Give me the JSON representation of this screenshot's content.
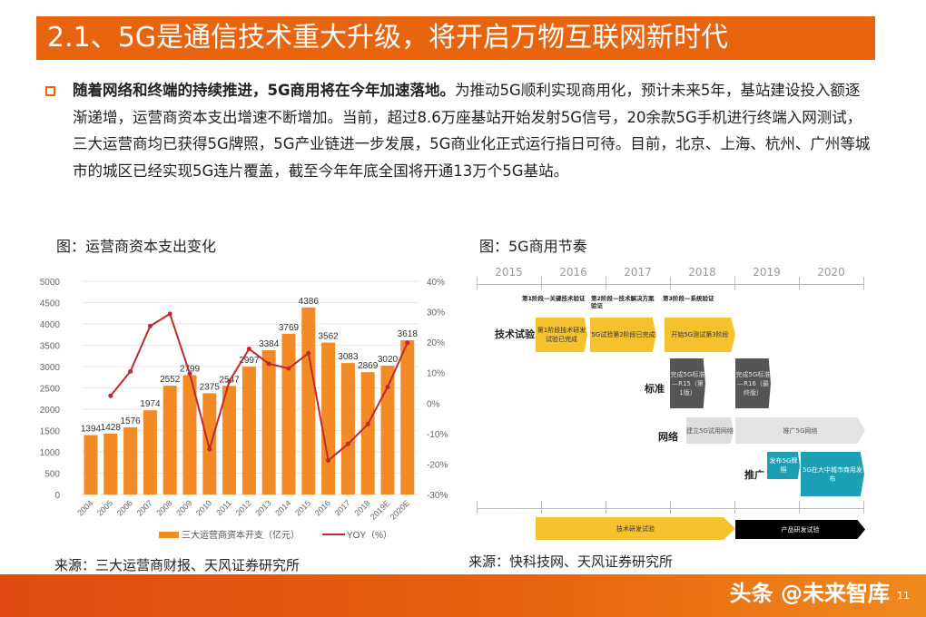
{
  "title": "2.1、5G是通信技术重大升级，将开启万物互联网新时代",
  "paragraph": {
    "bold": "随着网络和终端的持续推进，5G商用将在今年加速落地。",
    "text": "为推动5G顺利实现商用化，预计未来5年，基站建设投入额逐渐递增，运营商资本支出增速不断增加。当前，超过8.6万座基站开始发射5G信号，20余款5G手机进行终端入网测试，三大运营商均已获得5G牌照，5G产业链进一步发展，5G商业化正式运行指日可待。目前，北京、上海、杭州、广州等城市的城区已经实现5G连片覆盖，截至今年年底全国将开通13万个5G基站。"
  },
  "left_caption": "图：运营商资本支出变化",
  "right_caption": "图：5G商用节奏",
  "left_source": "来源：三大运营商财报、天风证券研究所",
  "right_source": "来源：快科技网、天风证券研究所",
  "watermark": "头条 @未来智库",
  "page_number": "11",
  "colors": {
    "accent": "#e8640f",
    "bar": "#f28a26",
    "line": "#c0282d",
    "yellow": "#f5c12e",
    "gray": "#555555",
    "teal": "#1a9fb5"
  },
  "chart_data": {
    "type": "bar+line",
    "categories": [
      "2004",
      "2005",
      "2006",
      "2007",
      "2008",
      "2009",
      "2010",
      "2011",
      "2012",
      "2013",
      "2014",
      "2015",
      "2016",
      "2017",
      "2018",
      "2019E",
      "2020E"
    ],
    "series": [
      {
        "name": "三大运营商资本开支（亿元）",
        "type": "bar",
        "axis": "left",
        "values": [
          1394,
          1428,
          1576,
          1974,
          2552,
          2799,
          2375,
          2547,
          2997,
          3384,
          3769,
          4386,
          3562,
          3083,
          2869,
          3020,
          3618
        ]
      },
      {
        "name": "YOY（%）",
        "type": "line",
        "axis": "right",
        "values": [
          null,
          2.4,
          10.4,
          25.3,
          29.3,
          9.7,
          -15.1,
          7.2,
          17.8,
          12.9,
          11.4,
          16.4,
          -18.8,
          -13.4,
          -6.9,
          5.3,
          19.8
        ]
      }
    ],
    "ylim": [
      0,
      5000
    ],
    "yticks": [
      "0",
      "500",
      "1000",
      "1500",
      "2000",
      "2500",
      "3000",
      "3500",
      "4000",
      "4500",
      "5000"
    ],
    "y2lim": [
      -30,
      40
    ],
    "y2ticks": [
      "-30%",
      "-20%",
      "-10%",
      "0%",
      "10%",
      "20%",
      "30%",
      "40%"
    ],
    "grid": true,
    "legend": "bottom"
  },
  "roadmap": {
    "years": [
      "2015",
      "2016",
      "2017",
      "2018",
      "2019",
      "2020"
    ],
    "phases": [
      "第1阶段—关键技术验证",
      "第2阶段—技术解决方案验证",
      "第3阶段—系统验证"
    ],
    "rows": [
      {
        "label": "技术试验",
        "items": [
          "第1阶段技术研发试验已完成",
          "5G试验第2阶段已完成",
          "开始5G测试第3阶段"
        ]
      },
      {
        "label": "标准",
        "items": [
          "完成5G标准—R15（第1版）",
          "完成5G标准—R16（最终版）"
        ]
      },
      {
        "label": "网络",
        "items": [
          "建立5G试用网络",
          "推广5G网络"
        ]
      },
      {
        "label": "推广",
        "items": [
          "发布5G牌照",
          "5G在大中城市商用发布"
        ]
      }
    ],
    "bottom": [
      "技术研发试验",
      "产品研发试验"
    ]
  }
}
